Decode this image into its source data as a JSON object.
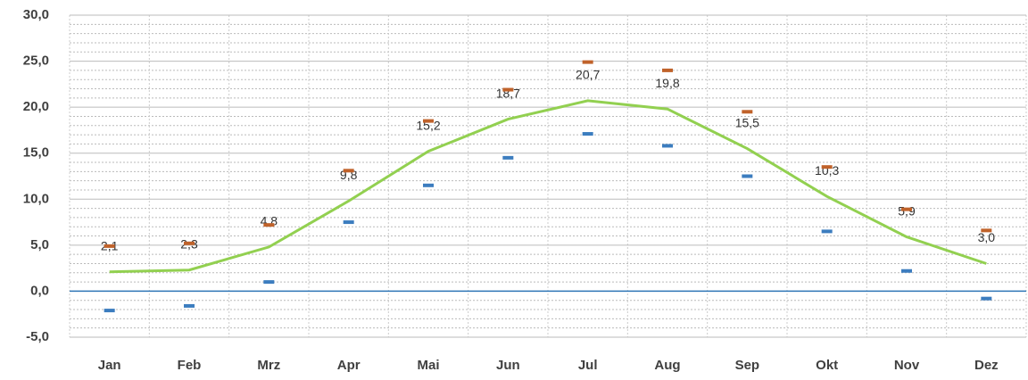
{
  "chart_data": {
    "type": "line",
    "categories": [
      "Jan",
      "Feb",
      "Mrz",
      "Apr",
      "Mai",
      "Jun",
      "Jul",
      "Aug",
      "Sep",
      "Okt",
      "Nov",
      "Dez"
    ],
    "series": [
      {
        "style": "line",
        "color": "#92d050",
        "values": [
          2.1,
          2.3,
          4.8,
          9.8,
          15.2,
          18.7,
          20.7,
          19.8,
          15.5,
          10.3,
          5.9,
          3.0
        ],
        "value_labels": [
          "2,1",
          "2,3",
          "4,8",
          "9,8",
          "15,2",
          "18,7",
          "20,7",
          "19,8",
          "15,5",
          "10,3",
          "5,9",
          "3,0"
        ]
      },
      {
        "style": "dash",
        "color": "#c0622a",
        "values": [
          4.9,
          5.2,
          7.2,
          13.1,
          18.5,
          21.9,
          24.9,
          24.0,
          19.5,
          13.5,
          8.9,
          6.6
        ]
      },
      {
        "style": "dash",
        "color": "#3c7dbf",
        "values": [
          -2.1,
          -1.6,
          1.0,
          7.5,
          11.5,
          14.5,
          17.1,
          15.8,
          12.5,
          6.5,
          2.2,
          -0.8
        ]
      }
    ],
    "ylim": [
      -5,
      30
    ],
    "yticks": [
      {
        "value": -5,
        "label": "-5,0"
      },
      {
        "value": 0,
        "label": "0,0"
      },
      {
        "value": 5,
        "label": "5,0"
      },
      {
        "value": 10,
        "label": "10,0"
      },
      {
        "value": 15,
        "label": "15,0"
      },
      {
        "value": 20,
        "label": "20,0"
      },
      {
        "value": 25,
        "label": "25,0"
      },
      {
        "value": 30,
        "label": "30,0"
      }
    ],
    "grid": true,
    "minor_grid": true,
    "zero_line_color": "#2e75b6"
  }
}
